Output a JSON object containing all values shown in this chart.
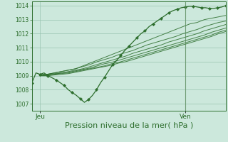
{
  "background_color": "#cce8dc",
  "grid_color": "#99c4b0",
  "line_color": "#2d6e2d",
  "marker_color": "#2d6e2d",
  "xlabel": "Pression niveau de la mer( hPa )",
  "xlabel_fontsize": 8,
  "tick_label_color": "#2d6e2d",
  "yticks": [
    1007,
    1008,
    1009,
    1010,
    1011,
    1012,
    1013,
    1014
  ],
  "ylim": [
    1006.5,
    1014.3
  ],
  "xlim": [
    0,
    48
  ],
  "xtick_positions": [
    2,
    38
  ],
  "xtick_labels": [
    "Jeu",
    "Ven"
  ],
  "vline_x": 38,
  "ensemble_series": [
    [
      1009.1,
      1009.1,
      1009.2,
      1009.3,
      1009.4,
      1009.5,
      1009.7,
      1009.9,
      1010.1,
      1010.3,
      1010.5,
      1010.7,
      1010.9,
      1011.1,
      1011.3,
      1011.5,
      1011.7,
      1011.9,
      1012.1,
      1012.3,
      1012.5,
      1012.7,
      1012.8,
      1013.0,
      1013.1,
      1013.2,
      1013.3
    ],
    [
      1009.1,
      1009.1,
      1009.2,
      1009.3,
      1009.4,
      1009.5,
      1009.65,
      1009.8,
      1010.0,
      1010.15,
      1010.3,
      1010.5,
      1010.65,
      1010.8,
      1011.0,
      1011.2,
      1011.35,
      1011.5,
      1011.65,
      1011.8,
      1012.0,
      1012.15,
      1012.3,
      1012.5,
      1012.65,
      1012.8,
      1012.9
    ],
    [
      1009.0,
      1009.1,
      1009.15,
      1009.2,
      1009.3,
      1009.4,
      1009.5,
      1009.65,
      1009.8,
      1009.95,
      1010.1,
      1010.25,
      1010.4,
      1010.6,
      1010.75,
      1010.9,
      1011.05,
      1011.2,
      1011.4,
      1011.55,
      1011.7,
      1011.85,
      1012.0,
      1012.2,
      1012.35,
      1012.5,
      1012.65
    ],
    [
      1009.0,
      1009.05,
      1009.1,
      1009.2,
      1009.25,
      1009.35,
      1009.45,
      1009.55,
      1009.7,
      1009.85,
      1009.95,
      1010.1,
      1010.25,
      1010.4,
      1010.55,
      1010.7,
      1010.85,
      1011.0,
      1011.15,
      1011.3,
      1011.45,
      1011.6,
      1011.75,
      1011.9,
      1012.1,
      1012.25,
      1012.4
    ],
    [
      1009.0,
      1009.0,
      1009.1,
      1009.15,
      1009.2,
      1009.3,
      1009.4,
      1009.5,
      1009.6,
      1009.7,
      1009.85,
      1009.95,
      1010.1,
      1010.25,
      1010.4,
      1010.55,
      1010.7,
      1010.85,
      1011.0,
      1011.15,
      1011.3,
      1011.45,
      1011.6,
      1011.75,
      1011.9,
      1012.1,
      1012.25
    ],
    [
      1009.0,
      1009.0,
      1009.05,
      1009.1,
      1009.15,
      1009.25,
      1009.35,
      1009.45,
      1009.55,
      1009.65,
      1009.75,
      1009.9,
      1010.0,
      1010.15,
      1010.3,
      1010.45,
      1010.6,
      1010.75,
      1010.9,
      1011.05,
      1011.2,
      1011.35,
      1011.5,
      1011.65,
      1011.8,
      1012.0,
      1012.15
    ]
  ],
  "main_series_x": [
    0,
    1,
    2,
    3,
    4,
    5,
    6,
    7,
    8,
    9,
    10,
    11,
    12,
    13,
    14,
    15,
    16,
    17,
    18,
    19,
    20,
    21,
    22,
    23,
    24,
    25,
    26,
    27,
    28,
    29,
    30,
    31,
    32,
    33,
    34,
    35,
    36,
    37,
    38,
    39,
    40,
    41,
    42,
    43,
    44,
    45,
    46,
    47,
    48
  ],
  "main_series_y": [
    1008.5,
    1009.2,
    1009.1,
    1009.2,
    1009.0,
    1008.85,
    1008.7,
    1008.5,
    1008.3,
    1008.0,
    1007.8,
    1007.6,
    1007.35,
    1007.1,
    1007.3,
    1007.6,
    1008.0,
    1008.5,
    1008.9,
    1009.35,
    1009.8,
    1010.1,
    1010.45,
    1010.8,
    1011.1,
    1011.4,
    1011.7,
    1012.0,
    1012.2,
    1012.5,
    1012.7,
    1012.9,
    1013.1,
    1013.3,
    1013.5,
    1013.65,
    1013.75,
    1013.85,
    1013.9,
    1013.95,
    1013.95,
    1013.9,
    1013.85,
    1013.85,
    1013.8,
    1013.8,
    1013.85,
    1013.9,
    1014.0
  ]
}
